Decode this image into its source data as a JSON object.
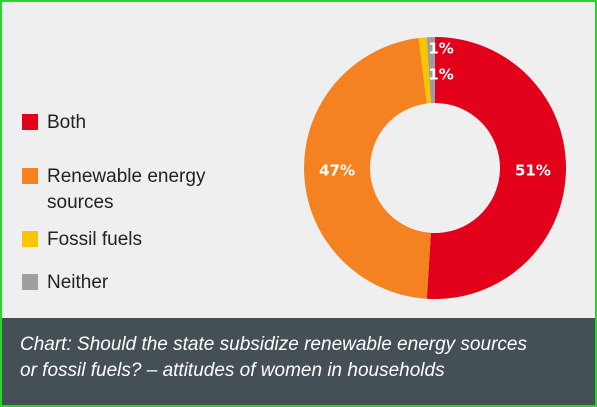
{
  "chart_data": {
    "type": "pie",
    "donut": true,
    "title": "",
    "categories": [
      "Both",
      "Renewable energy sources",
      "Fossil fuels",
      "Neither"
    ],
    "values": [
      51,
      47,
      1,
      1
    ],
    "value_labels": [
      "51%",
      "47%",
      "1%",
      "1%"
    ],
    "colors": [
      "#e3001b",
      "#f58220",
      "#f7c600",
      "#9e9e9e"
    ],
    "legend_placement": "left"
  },
  "legend": [
    {
      "label_lines": [
        "Both"
      ],
      "color": "#e3001b"
    },
    {
      "label_lines": [
        "Renewable energy",
        "sources"
      ],
      "color": "#f58220"
    },
    {
      "label_lines": [
        "Fossil fuels"
      ],
      "color": "#f7c600"
    },
    {
      "label_lines": [
        "Neither"
      ],
      "color": "#9e9e9e"
    }
  ],
  "caption": {
    "line1": "Chart: Should the state subsidize renewable energy sources",
    "line2": "or fossil fuels? – attitudes of women in households"
  }
}
